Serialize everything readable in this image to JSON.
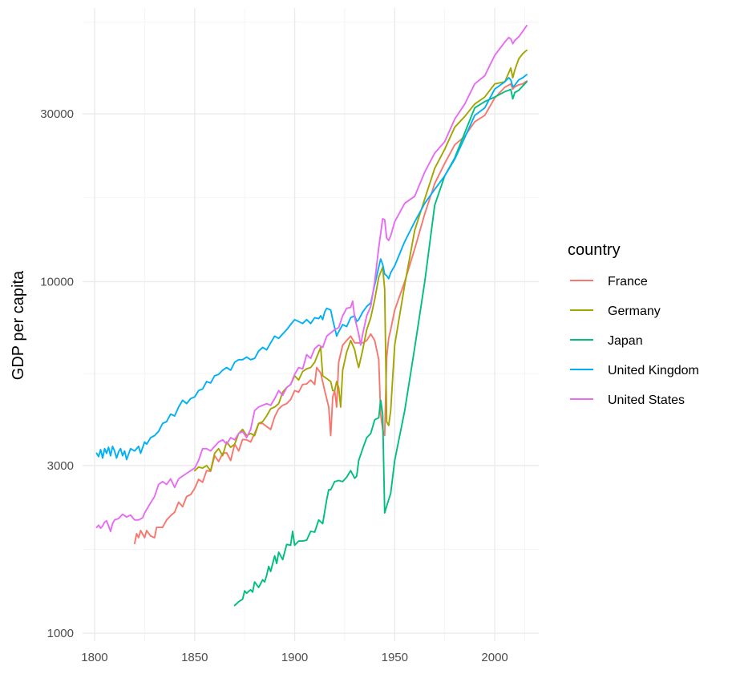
{
  "chart_data": {
    "type": "line",
    "title": "",
    "xlabel": "",
    "ylabel": "GDP per capita",
    "yscale": "log",
    "xlim": [
      1794,
      2022
    ],
    "ylim": [
      950,
      60000
    ],
    "x_ticks": [
      1800,
      1850,
      1900,
      1950,
      2000
    ],
    "x_tick_labels": [
      "1800",
      "1850",
      "1900",
      "1950",
      "2000"
    ],
    "x_minor_ticks": [
      1825,
      1875,
      1925,
      1975,
      2015
    ],
    "y_ticks": [
      1000,
      3000,
      10000,
      30000
    ],
    "y_tick_labels": [
      "1000",
      "3000",
      "10000",
      "30000"
    ],
    "y_minor_ticks": [
      1732,
      5477,
      17320,
      54770
    ],
    "grid": true,
    "legend": {
      "title": "country",
      "position": "right"
    },
    "series": [
      {
        "name": "France",
        "color": "#F8766D",
        "x": [
          1820,
          1821,
          1822,
          1823,
          1825,
          1826,
          1828,
          1830,
          1831,
          1834,
          1836,
          1838,
          1840,
          1842,
          1844,
          1846,
          1848,
          1850,
          1852,
          1854,
          1856,
          1858,
          1860,
          1862,
          1864,
          1866,
          1868,
          1870,
          1872,
          1874,
          1876,
          1878,
          1880,
          1882,
          1884,
          1886,
          1888,
          1890,
          1892,
          1894,
          1896,
          1898,
          1900,
          1902,
          1904,
          1906,
          1908,
          1910,
          1911,
          1912,
          1913,
          1915,
          1917,
          1918,
          1919,
          1920,
          1921,
          1922,
          1924,
          1926,
          1928,
          1930,
          1932,
          1934,
          1936,
          1938,
          1940,
          1942,
          1943,
          1944,
          1945,
          1946,
          1947,
          1948,
          1950,
          1955,
          1960,
          1965,
          1970,
          1975,
          1980,
          1985,
          1990,
          1995,
          2000,
          2005,
          2008,
          2009,
          2010,
          2012,
          2014,
          2016
        ],
        "values": [
          1800,
          1920,
          1870,
          1960,
          1870,
          1960,
          1890,
          1870,
          2000,
          2000,
          2100,
          2160,
          2210,
          2360,
          2290,
          2450,
          2480,
          2580,
          2740,
          2690,
          2900,
          2890,
          3200,
          3080,
          3250,
          3260,
          3100,
          3450,
          3300,
          3560,
          3550,
          3500,
          3700,
          3950,
          3950,
          3870,
          3800,
          4130,
          4350,
          4450,
          4500,
          4620,
          4900,
          4850,
          5100,
          5120,
          5250,
          5100,
          5700,
          5600,
          5500,
          4900,
          4400,
          3650,
          4700,
          4900,
          4400,
          5900,
          6600,
          6800,
          7000,
          6700,
          6700,
          6700,
          6800,
          7100,
          6800,
          6000,
          4200,
          3800,
          3650,
          6100,
          6900,
          7300,
          8300,
          10000,
          12400,
          15600,
          19000,
          21700,
          24500,
          25900,
          28500,
          29700,
          33300,
          35700,
          36500,
          35300,
          35800,
          36300,
          36500,
          37200
        ]
      },
      {
        "name": "Germany",
        "color": "#A3A500",
        "x": [
          1850,
          1852,
          1854,
          1856,
          1858,
          1860,
          1862,
          1864,
          1866,
          1868,
          1870,
          1872,
          1874,
          1876,
          1878,
          1880,
          1882,
          1884,
          1886,
          1888,
          1890,
          1892,
          1894,
          1896,
          1898,
          1900,
          1902,
          1904,
          1906,
          1908,
          1910,
          1912,
          1913,
          1914,
          1916,
          1918,
          1919,
          1920,
          1921,
          1922,
          1923,
          1924,
          1926,
          1928,
          1930,
          1931,
          1932,
          1934,
          1936,
          1938,
          1940,
          1942,
          1944,
          1945,
          1946,
          1947,
          1948,
          1950,
          1955,
          1960,
          1965,
          1970,
          1975,
          1980,
          1985,
          1990,
          1995,
          2000,
          2005,
          2008,
          2009,
          2010,
          2012,
          2014,
          2016
        ],
        "values": [
          2900,
          2970,
          2950,
          3000,
          2900,
          3250,
          3350,
          3200,
          3500,
          3380,
          3450,
          3700,
          3800,
          3650,
          3700,
          3650,
          3950,
          4000,
          4150,
          4350,
          4400,
          4500,
          4850,
          5000,
          5100,
          5400,
          5250,
          5550,
          5650,
          5700,
          5900,
          6300,
          6500,
          5400,
          5300,
          5200,
          4900,
          4900,
          5200,
          5000,
          4400,
          5600,
          6300,
          6800,
          6400,
          6000,
          5700,
          6400,
          7300,
          7900,
          8900,
          10300,
          11000,
          9500,
          4000,
          3900,
          4300,
          6600,
          9800,
          14000,
          17200,
          21000,
          23800,
          27500,
          29500,
          32000,
          33500,
          36500,
          37000,
          40500,
          38000,
          40000,
          43000,
          44500,
          45500
        ]
      },
      {
        "name": "Japan",
        "color": "#00BF7D",
        "x": [
          1870,
          1872,
          1874,
          1875,
          1876,
          1878,
          1879,
          1880,
          1882,
          1884,
          1885,
          1886,
          1887,
          1888,
          1890,
          1891,
          1892,
          1894,
          1896,
          1898,
          1899,
          1900,
          1902,
          1904,
          1906,
          1908,
          1910,
          1912,
          1914,
          1916,
          1917,
          1918,
          1920,
          1922,
          1924,
          1926,
          1928,
          1930,
          1931,
          1932,
          1934,
          1936,
          1938,
          1940,
          1942,
          1943,
          1944,
          1945,
          1946,
          1948,
          1950,
          1955,
          1960,
          1965,
          1970,
          1975,
          1980,
          1985,
          1990,
          1995,
          2000,
          2005,
          2008,
          2009,
          2010,
          2012,
          2014,
          2016
        ],
        "values": [
          1200,
          1230,
          1250,
          1320,
          1300,
          1330,
          1310,
          1400,
          1350,
          1420,
          1400,
          1460,
          1550,
          1500,
          1660,
          1580,
          1700,
          1620,
          1790,
          1780,
          1950,
          1780,
          1830,
          1830,
          1840,
          1950,
          1940,
          2100,
          2050,
          2400,
          2560,
          2560,
          2700,
          2720,
          2700,
          2780,
          2900,
          2760,
          2800,
          3100,
          3350,
          3600,
          3700,
          4050,
          4100,
          4600,
          4200,
          2200,
          2300,
          2500,
          3100,
          4300,
          6500,
          10000,
          16500,
          20000,
          22500,
          26500,
          31200,
          32500,
          33500,
          34700,
          35200,
          33100,
          34500,
          35000,
          36000,
          37000
        ]
      },
      {
        "name": "United Kingdom",
        "color": "#00B0F6",
        "x": [
          1801,
          1802,
          1803,
          1804,
          1805,
          1806,
          1807,
          1808,
          1809,
          1810,
          1811,
          1812,
          1813,
          1814,
          1815,
          1816,
          1818,
          1820,
          1822,
          1823,
          1825,
          1826,
          1828,
          1830,
          1832,
          1834,
          1836,
          1838,
          1840,
          1842,
          1844,
          1846,
          1848,
          1850,
          1852,
          1854,
          1856,
          1858,
          1860,
          1862,
          1864,
          1866,
          1868,
          1870,
          1872,
          1874,
          1876,
          1878,
          1880,
          1882,
          1884,
          1886,
          1888,
          1890,
          1892,
          1894,
          1896,
          1898,
          1900,
          1902,
          1904,
          1906,
          1908,
          1910,
          1912,
          1913,
          1914,
          1915,
          1916,
          1918,
          1919,
          1920,
          1921,
          1922,
          1924,
          1926,
          1928,
          1930,
          1931,
          1932,
          1934,
          1936,
          1938,
          1940,
          1942,
          1943,
          1944,
          1945,
          1946,
          1947,
          1948,
          1950,
          1955,
          1960,
          1965,
          1970,
          1975,
          1980,
          1985,
          1990,
          1995,
          2000,
          2005,
          2007,
          2008,
          2009,
          2010,
          2012,
          2014,
          2016
        ],
        "values": [
          3250,
          3180,
          3330,
          3150,
          3350,
          3250,
          3380,
          3200,
          3400,
          3300,
          3150,
          3280,
          3350,
          3200,
          3300,
          3120,
          3350,
          3300,
          3400,
          3250,
          3500,
          3450,
          3600,
          3650,
          3750,
          3950,
          4000,
          4200,
          4150,
          4400,
          4600,
          4500,
          4650,
          4700,
          4900,
          4950,
          5200,
          5150,
          5400,
          5450,
          5600,
          5700,
          5600,
          5900,
          6000,
          6000,
          6100,
          6000,
          6050,
          6350,
          6500,
          6400,
          6700,
          7000,
          6900,
          7100,
          7300,
          7550,
          7800,
          7700,
          7600,
          7800,
          7600,
          7900,
          7850,
          8000,
          7800,
          8200,
          8400,
          8300,
          7800,
          7400,
          7000,
          7200,
          7550,
          7450,
          7900,
          8000,
          7700,
          7800,
          8200,
          8500,
          8700,
          9800,
          11000,
          11600,
          11200,
          10500,
          10400,
          10200,
          10600,
          11100,
          13000,
          14800,
          16700,
          18300,
          20000,
          22300,
          25700,
          29700,
          31200,
          35300,
          37000,
          38000,
          37500,
          35800,
          36200,
          37500,
          38000,
          38800
        ]
      },
      {
        "name": "United States",
        "color": "#E76BF3",
        "x": [
          1801,
          1802,
          1803,
          1804,
          1805,
          1806,
          1807,
          1808,
          1809,
          1810,
          1812,
          1814,
          1816,
          1818,
          1820,
          1822,
          1824,
          1825,
          1826,
          1828,
          1830,
          1832,
          1834,
          1836,
          1838,
          1840,
          1842,
          1844,
          1846,
          1848,
          1850,
          1852,
          1854,
          1856,
          1858,
          1860,
          1862,
          1864,
          1866,
          1868,
          1870,
          1872,
          1874,
          1876,
          1878,
          1880,
          1882,
          1884,
          1886,
          1888,
          1890,
          1892,
          1894,
          1896,
          1898,
          1900,
          1902,
          1904,
          1906,
          1908,
          1910,
          1912,
          1914,
          1916,
          1918,
          1920,
          1922,
          1924,
          1926,
          1928,
          1929,
          1930,
          1932,
          1933,
          1934,
          1936,
          1938,
          1940,
          1942,
          1944,
          1945,
          1946,
          1947,
          1948,
          1950,
          1955,
          1960,
          1965,
          1970,
          1975,
          1980,
          1985,
          1990,
          1995,
          2000,
          2005,
          2007,
          2008,
          2009,
          2010,
          2012,
          2014,
          2016
        ],
        "values": [
          2000,
          2030,
          1990,
          2020,
          2070,
          2090,
          2020,
          1950,
          2050,
          2100,
          2120,
          2180,
          2140,
          2170,
          2100,
          2100,
          2130,
          2200,
          2250,
          2350,
          2450,
          2650,
          2700,
          2650,
          2750,
          2600,
          2750,
          2800,
          2850,
          2900,
          2950,
          3100,
          3350,
          3350,
          3300,
          3400,
          3500,
          3550,
          3450,
          3600,
          3550,
          3700,
          3750,
          3600,
          3800,
          4300,
          4400,
          4450,
          4500,
          4450,
          4650,
          4900,
          4750,
          5000,
          5100,
          5450,
          5700,
          5650,
          6200,
          6050,
          6450,
          6600,
          6500,
          7000,
          7150,
          7300,
          7400,
          8000,
          8400,
          8450,
          8800,
          7900,
          7100,
          6600,
          7100,
          8000,
          8500,
          10000,
          12500,
          15100,
          15000,
          13300,
          13100,
          13500,
          14800,
          16700,
          17500,
          20500,
          23200,
          25000,
          29000,
          32000,
          36500,
          38500,
          44000,
          48000,
          49500,
          49000,
          47500,
          48500,
          49700,
          51500,
          53500
        ]
      }
    ]
  }
}
